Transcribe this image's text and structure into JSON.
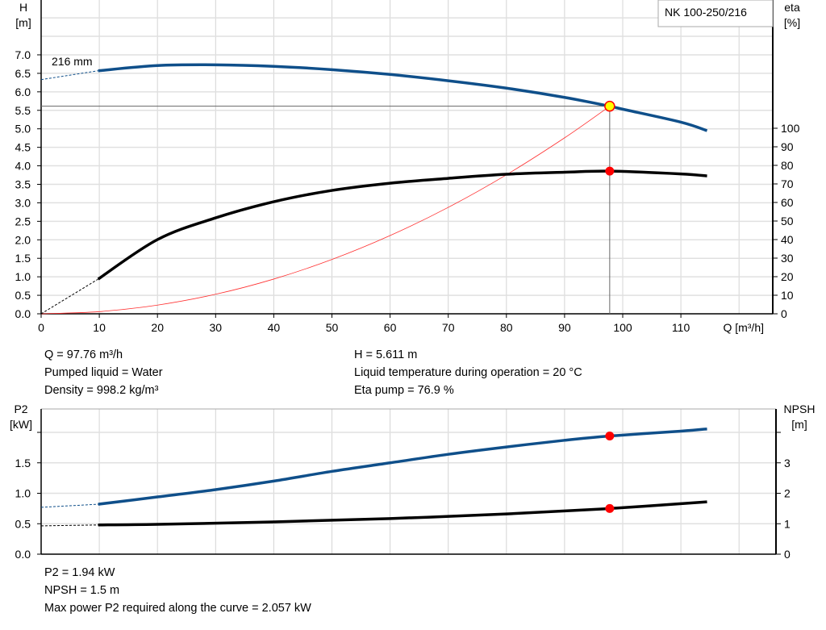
{
  "chart_data": [
    {
      "type": "line",
      "title": "NK 100-250/216",
      "xlabel": "Q [m³/h]",
      "ylabel_left": "H\n[m]",
      "ylabel_right": "eta\n[%]",
      "xlim": [
        0,
        125
      ],
      "ylim_left": [
        0,
        8.5
      ],
      "ylim_right": [
        0,
        100
      ],
      "x_ticks": [
        0,
        10,
        20,
        30,
        40,
        50,
        60,
        70,
        80,
        90,
        100,
        110
      ],
      "y_ticks_left": [
        "0.0",
        "0.5",
        "1.0",
        "1.5",
        "2.0",
        "2.5",
        "3.0",
        "3.5",
        "4.0",
        "4.5",
        "5.0",
        "5.5",
        "6.0",
        "6.5",
        "7.0"
      ],
      "y_ticks_right": [
        0,
        10,
        20,
        30,
        40,
        50,
        60,
        70,
        80,
        90,
        100
      ],
      "grid": true,
      "curve_label": "216 mm",
      "series": [
        {
          "name": "H",
          "axis": "left",
          "color": "#0f4f8a",
          "dashed_part": [
            [
              0,
              6.33
            ],
            [
              9.8,
              6.57
            ]
          ],
          "points": [
            [
              9.8,
              6.57
            ],
            [
              20,
              6.71
            ],
            [
              30,
              6.73
            ],
            [
              40,
              6.69
            ],
            [
              50,
              6.6
            ],
            [
              60,
              6.47
            ],
            [
              70,
              6.3
            ],
            [
              80,
              6.1
            ],
            [
              90,
              5.85
            ],
            [
              97.76,
              5.611
            ],
            [
              100,
              5.53
            ],
            [
              110,
              5.18
            ],
            [
              114.5,
              4.95
            ]
          ]
        },
        {
          "name": "eta",
          "axis": "right",
          "color": "#000000",
          "dashed_part": [
            [
              0,
              0
            ],
            [
              9.8,
              18.7
            ]
          ],
          "points": [
            [
              9.8,
              18.7
            ],
            [
              20,
              40
            ],
            [
              30,
              51.7
            ],
            [
              40,
              60.4
            ],
            [
              50,
              66.5
            ],
            [
              60,
              70.4
            ],
            [
              70,
              73
            ],
            [
              80,
              75.2
            ],
            [
              90,
              76.3
            ],
            [
              97.76,
              76.9
            ],
            [
              110,
              75.4
            ],
            [
              114.5,
              74.3
            ]
          ]
        },
        {
          "name": "system curve",
          "axis": "left",
          "color": "#ff3030",
          "points": [
            [
              0,
              0
            ],
            [
              10,
              0.059
            ],
            [
              20,
              0.235
            ],
            [
              30,
              0.528
            ],
            [
              40,
              0.939
            ],
            [
              50,
              1.468
            ],
            [
              60,
              2.114
            ],
            [
              70,
              2.877
            ],
            [
              80,
              3.758
            ],
            [
              90,
              4.756
            ],
            [
              97.76,
              5.611
            ]
          ]
        }
      ],
      "duty_point": {
        "Q": 97.76,
        "H": 5.611,
        "eta": 76.9
      }
    },
    {
      "type": "line",
      "xlim": [
        0,
        125
      ],
      "ylabel_left": "P2\n[kW]",
      "ylabel_right": "NPSH\n[m]",
      "ylim_left": [
        0,
        2.4
      ],
      "ylim_right": [
        0,
        4.8
      ],
      "y_ticks_left": [
        "0.0",
        "0.5",
        "1.0",
        "1.5",
        ""
      ],
      "y_ticks_right": [
        "0",
        "1",
        "2",
        "3",
        ""
      ],
      "grid": true,
      "series": [
        {
          "name": "P2",
          "axis": "left",
          "color": "#0f4f8a",
          "dashed_part": [
            [
              0,
              0.77
            ],
            [
              9.8,
              0.82
            ]
          ],
          "points": [
            [
              9.8,
              0.82
            ],
            [
              20,
              0.94
            ],
            [
              30,
              1.06
            ],
            [
              40,
              1.2
            ],
            [
              50,
              1.36
            ],
            [
              60,
              1.5
            ],
            [
              70,
              1.64
            ],
            [
              80,
              1.76
            ],
            [
              90,
              1.87
            ],
            [
              97.76,
              1.94
            ],
            [
              110,
              2.02
            ],
            [
              114.5,
              2.057
            ]
          ]
        },
        {
          "name": "NPSH",
          "axis": "right",
          "color": "#000000",
          "dashed_part": [
            [
              0,
              0.93
            ],
            [
              9.8,
              0.96
            ]
          ],
          "points": [
            [
              9.8,
              0.96
            ],
            [
              20,
              0.98
            ],
            [
              40,
              1.06
            ],
            [
              60,
              1.17
            ],
            [
              80,
              1.32
            ],
            [
              97.76,
              1.5
            ],
            [
              114.5,
              1.72
            ]
          ]
        }
      ],
      "duty_point": {
        "Q": 97.76,
        "P2": 1.94,
        "NPSH": 1.5
      }
    }
  ],
  "info_top": {
    "left": [
      "Q = 97.76 m³/h",
      "Pumped liquid = Water",
      "Density = 998.2 kg/m³"
    ],
    "right": [
      "H = 5.611 m",
      "Liquid temperature during operation = 20 °C",
      "Eta pump = 76.9 %"
    ]
  },
  "info_bottom": [
    "P2 = 1.94 kW",
    "NPSH = 1.5 m",
    "Max power P2 required along the curve = 2.057 kW"
  ]
}
